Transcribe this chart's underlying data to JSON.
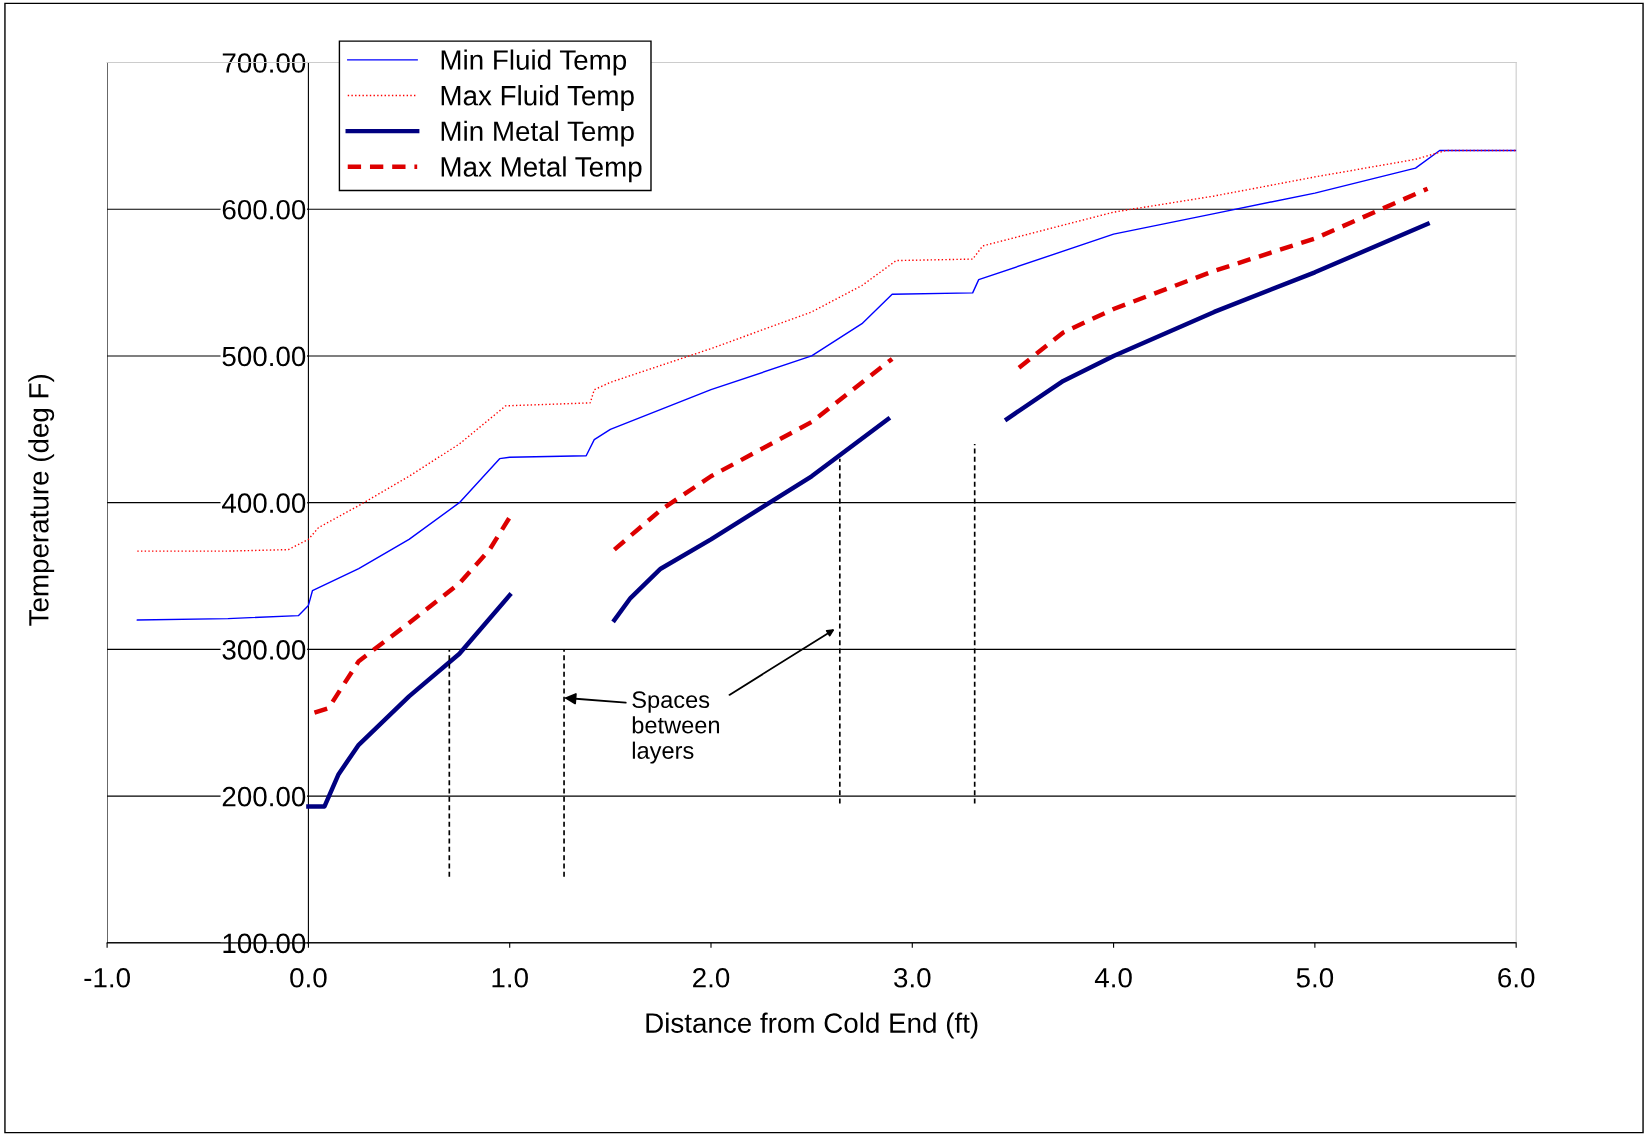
{
  "chart_data": {
    "type": "line",
    "xlabel": "Distance from Cold End (ft)",
    "ylabel": "Temperature (deg F)",
    "xlim": [
      -1,
      6
    ],
    "xticks": [
      {
        "value": -1,
        "label": "-1.0"
      },
      {
        "value": 0,
        "label": "0.0"
      },
      {
        "value": 1,
        "label": "1.0"
      },
      {
        "value": 2,
        "label": "2.0"
      },
      {
        "value": 3,
        "label": "3.0"
      },
      {
        "value": 4,
        "label": "4.0"
      },
      {
        "value": 5,
        "label": "5.0"
      },
      {
        "value": 6,
        "label": "6.0"
      }
    ],
    "ylim": [
      100,
      700
    ],
    "yticks": [
      {
        "value": 100,
        "label": "100.00"
      },
      {
        "value": 200,
        "label": "200.00"
      },
      {
        "value": 300,
        "label": "300.00"
      },
      {
        "value": 400,
        "label": "400.00"
      },
      {
        "value": 500,
        "label": "500.00"
      },
      {
        "value": 600,
        "label": "600.00"
      },
      {
        "value": 700,
        "label": "700.00"
      }
    ],
    "grid": "y",
    "legend": "top left",
    "marker": "none",
    "series": [
      {
        "name": "Min Fluid Temp",
        "color": "#0000ff",
        "line_style": "solid",
        "x": [
          -0.85,
          -0.4,
          -0.05,
          0.0,
          0.02,
          0.25,
          0.5,
          0.75,
          0.95,
          1.0,
          1.38,
          1.42,
          1.5,
          2.0,
          2.5,
          2.75,
          2.9,
          3.3,
          3.33,
          4.0,
          4.5,
          5.0,
          5.5,
          5.62,
          6.0
        ],
        "values": [
          320,
          321,
          323,
          330,
          340,
          355,
          375,
          400,
          430,
          431,
          432,
          443,
          450,
          477,
          500,
          522,
          542,
          543,
          552,
          583,
          597,
          611,
          628,
          640,
          640
        ]
      },
      {
        "name": "Max Fluid Temp",
        "color": "#ff0000",
        "line_style": "dotted",
        "x": [
          -0.85,
          -0.4,
          -0.1,
          0.0,
          0.05,
          0.25,
          0.5,
          0.75,
          0.98,
          1.4,
          1.42,
          1.5,
          2.0,
          2.5,
          2.75,
          2.92,
          3.3,
          3.35,
          4.0,
          4.5,
          5.0,
          5.5,
          5.65,
          6.0
        ],
        "values": [
          367,
          367,
          368,
          375,
          383,
          398,
          418,
          440,
          466,
          468,
          477,
          482,
          505,
          530,
          548,
          565,
          566,
          575,
          598,
          609,
          622,
          634,
          640,
          640
        ]
      },
      {
        "name": "Min Metal Temp",
        "color": "#000080",
        "line_style": "solid",
        "x": [
          0.0,
          0.08,
          0.15,
          0.25,
          0.5,
          0.75,
          1.0,
          1.25,
          1.52,
          1.6,
          1.75,
          2.0,
          2.5,
          2.88,
          3.2,
          3.47,
          3.75,
          4.0,
          4.5,
          5.0,
          5.56
        ],
        "values": [
          193,
          193,
          215,
          235,
          268,
          297,
          337,
          null,
          320,
          335,
          355,
          375,
          418,
          457,
          null,
          457,
          483,
          500,
          530,
          557,
          590
        ]
      },
      {
        "name": "Max Metal Temp",
        "color": "#dd0000",
        "line_style": "dashed",
        "x": [
          0.03,
          0.1,
          0.25,
          0.5,
          0.75,
          0.9,
          1.0,
          1.25,
          1.52,
          1.75,
          2.0,
          2.5,
          2.9,
          3.2,
          3.53,
          3.75,
          4.0,
          4.5,
          5.0,
          5.56
        ],
        "values": [
          257,
          260,
          292,
          318,
          345,
          368,
          390,
          null,
          368,
          395,
          418,
          455,
          498,
          null,
          492,
          516,
          532,
          558,
          580,
          614
        ]
      },
      {
        "color": "#000000",
        "line_style": "dashed",
        "x": [
          0.7,
          0.7
        ],
        "values": [
          145,
          300
        ]
      },
      {
        "color": "#000000",
        "line_style": "dashed",
        "x": [
          1.27,
          1.27
        ],
        "values": [
          145,
          300
        ]
      },
      {
        "color": "#000000",
        "line_style": "dashed",
        "x": [
          2.64,
          2.64
        ],
        "values": [
          195,
          430
        ]
      },
      {
        "color": "#000000",
        "line_style": "dashed",
        "x": [
          3.31,
          3.31
        ],
        "values": [
          195,
          440
        ]
      }
    ],
    "annotations": [
      {
        "text": "Spaces\nbetween\nlayers",
        "x": 1.27,
        "y": 267
      }
    ]
  }
}
